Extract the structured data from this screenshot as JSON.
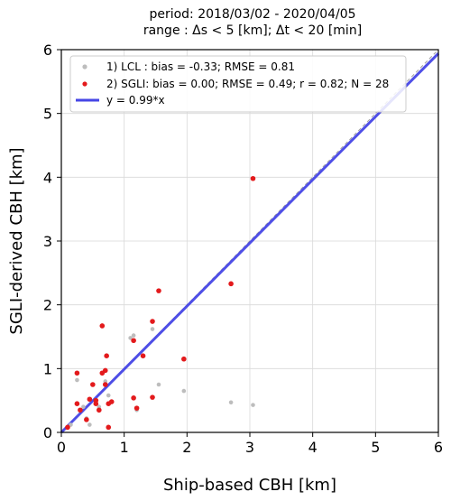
{
  "chart_data": {
    "type": "scatter",
    "title_lines": [
      "period: 2018/03/02 - 2020/04/05",
      "range : Δs < 5 [km]; Δt < 20 [min]"
    ],
    "xlabel": "Ship-based CBH [km]",
    "ylabel": "SGLI-derived CBH [km]",
    "xlim": [
      0,
      6
    ],
    "ylim": [
      0,
      6
    ],
    "xticks": [
      "0",
      "1",
      "2",
      "3",
      "4",
      "5",
      "6"
    ],
    "yticks": [
      "0",
      "1",
      "2",
      "3",
      "4",
      "5",
      "6"
    ],
    "grid": true,
    "legend_position": "upper-left",
    "colors": {
      "lcl": "#bdbdbd",
      "sgli": "#e31a1c",
      "fit": "#4646e6",
      "identity": "#9e9e9e"
    },
    "series": [
      {
        "name": "1) LCL : bias = -0.33; RMSE = 0.81",
        "marker": "dot",
        "x": [
          0.25,
          0.45,
          0.6,
          0.75,
          1.15,
          1.45,
          1.55,
          1.95,
          2.7,
          3.05,
          0.15,
          0.4,
          0.7,
          1.2,
          1.1,
          0.35,
          0.55
        ],
        "y": [
          0.82,
          0.12,
          0.4,
          0.58,
          1.52,
          1.62,
          0.75,
          0.65,
          0.47,
          0.43,
          0.12,
          0.22,
          0.8,
          0.35,
          1.48,
          0.4,
          0.45
        ]
      },
      {
        "name": "2) SGLI: bias = 0.00; RMSE = 0.49; r = 0.82; N = 28",
        "marker": "dot",
        "x": [
          0.25,
          0.25,
          0.3,
          0.45,
          0.5,
          0.55,
          0.6,
          0.65,
          0.65,
          0.7,
          0.7,
          0.72,
          0.75,
          0.75,
          0.8,
          1.15,
          1.15,
          1.2,
          1.3,
          1.45,
          1.45,
          1.55,
          1.95,
          2.7,
          3.05,
          0.1,
          0.4,
          0.55
        ],
        "y": [
          0.93,
          0.45,
          0.35,
          0.52,
          0.75,
          0.45,
          0.35,
          1.67,
          0.93,
          0.97,
          0.75,
          1.2,
          0.08,
          0.45,
          0.48,
          0.54,
          1.44,
          0.38,
          1.2,
          1.74,
          0.55,
          2.22,
          1.15,
          2.33,
          3.98,
          0.08,
          0.2,
          0.5
        ]
      }
    ],
    "fit_line": {
      "label": "y = 0.99*x",
      "slope": 0.99
    },
    "identity_line": {
      "slope": 1.0
    }
  }
}
